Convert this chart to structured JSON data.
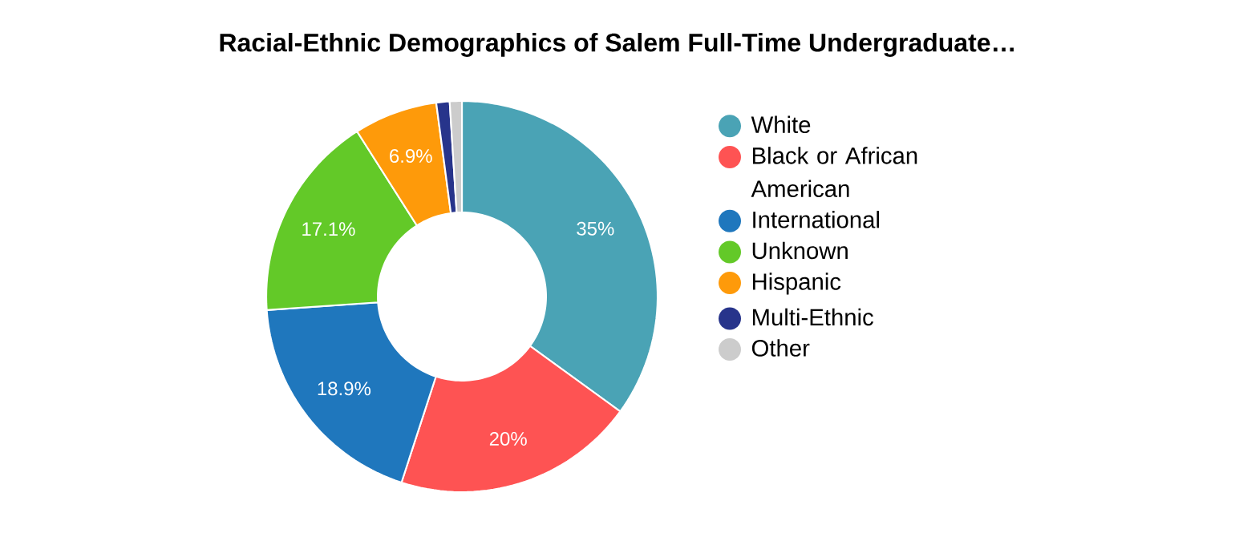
{
  "chart_data": {
    "type": "donut",
    "title": "Racial-Ethnic Demographics of Salem Full-Time Undergraduate…",
    "categories": [
      "White",
      "Black or African American",
      "International",
      "Unknown",
      "Hispanic",
      "Multi-Ethnic",
      "Other"
    ],
    "values": [
      35,
      20,
      18.9,
      17.1,
      6.9,
      1.1,
      1.0
    ],
    "colors": [
      "#4aa3b5",
      "#fe5353",
      "#1f77bd",
      "#63c928",
      "#fe9a0a",
      "#27348b",
      "#cccccc"
    ],
    "value_labels": [
      "35%",
      "20%",
      "18.9%",
      "17.1%",
      "6.9%",
      null,
      null
    ],
    "legend": "right"
  }
}
